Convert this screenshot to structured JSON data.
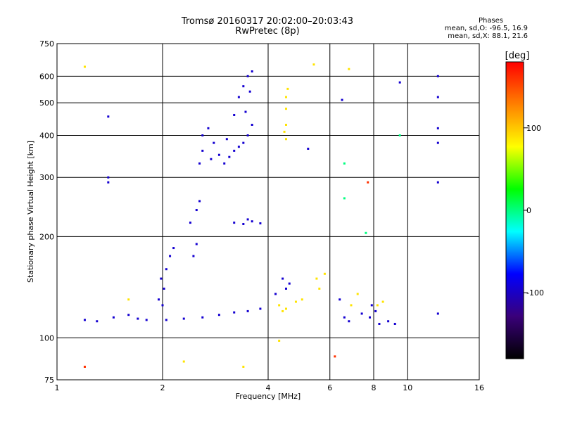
{
  "chart_data": {
    "type": "scatter",
    "title": "Tromsø 20160317 20:02:00–20:03:43",
    "subtitle": "RwPretec (8p)",
    "xlabel": "Frequency [MHz]",
    "ylabel": "Stationary phase Virtual Height [km]",
    "x_scale": "log2",
    "y_scale": "log",
    "xlim": [
      1,
      16
    ],
    "ylim": [
      75,
      750
    ],
    "x_ticks": [
      "1",
      "2",
      "4",
      "6",
      "8",
      "10",
      "16"
    ],
    "x_tick_values": [
      1,
      2,
      4,
      6,
      8,
      10,
      16
    ],
    "x_grid_values": [
      2,
      4,
      6,
      8,
      10
    ],
    "y_ticks": [
      "75",
      "100",
      "200",
      "300",
      "400",
      "500",
      "600",
      "750"
    ],
    "y_tick_values": [
      75,
      100,
      200,
      300,
      400,
      500,
      600,
      750
    ],
    "grid": true,
    "phases_box": {
      "title": "Phases",
      "line1": "mean, sd,O: -96.5, 16.9",
      "line2": "mean, sd,X:  88.1, 21.6"
    },
    "colorbar": {
      "label": "[deg]",
      "range": [
        -180,
        180
      ],
      "ticks": [
        "100",
        "0",
        "-100"
      ],
      "tick_values": [
        100,
        0,
        -100
      ],
      "colors": [
        "#000000",
        "#3a007a",
        "#0000ff",
        "#00ffff",
        "#00ff00",
        "#ffff00",
        "#ff8000",
        "#ff0000"
      ]
    },
    "series": [
      {
        "phase": -95,
        "points": [
          [
            2.55,
            330
          ],
          [
            2.6,
            360
          ],
          [
            2.7,
            420
          ],
          [
            2.8,
            380
          ],
          [
            2.9,
            350
          ],
          [
            3.0,
            330
          ],
          [
            3.1,
            345
          ],
          [
            3.2,
            360
          ],
          [
            3.3,
            370
          ],
          [
            3.4,
            380
          ],
          [
            3.5,
            400
          ],
          [
            3.6,
            430
          ],
          [
            3.2,
            460
          ],
          [
            3.3,
            520
          ],
          [
            3.4,
            560
          ],
          [
            3.5,
            600
          ],
          [
            3.6,
            620
          ],
          [
            2.6,
            400
          ],
          [
            2.75,
            340
          ],
          [
            3.05,
            390
          ],
          [
            3.45,
            470
          ],
          [
            3.55,
            540
          ],
          [
            2.05,
            113
          ],
          [
            2.3,
            114
          ],
          [
            2.6,
            115
          ],
          [
            2.9,
            117
          ],
          [
            3.2,
            119
          ],
          [
            3.5,
            120
          ],
          [
            3.8,
            122
          ],
          [
            1.2,
            113
          ],
          [
            1.3,
            112
          ],
          [
            1.45,
            115
          ],
          [
            1.6,
            117
          ],
          [
            1.7,
            114
          ],
          [
            1.8,
            113
          ],
          [
            2.0,
            125
          ],
          [
            2.02,
            140
          ],
          [
            2.05,
            160
          ],
          [
            2.1,
            175
          ],
          [
            2.15,
            185
          ],
          [
            1.95,
            130
          ],
          [
            1.98,
            150
          ],
          [
            2.4,
            220
          ],
          [
            2.5,
            240
          ],
          [
            2.55,
            255
          ],
          [
            2.45,
            175
          ],
          [
            2.5,
            190
          ],
          [
            3.2,
            220
          ],
          [
            3.4,
            218
          ],
          [
            3.6,
            222
          ],
          [
            3.8,
            219
          ],
          [
            3.5,
            225
          ],
          [
            4.4,
            150
          ],
          [
            4.5,
            140
          ],
          [
            4.2,
            135
          ],
          [
            4.6,
            145
          ],
          [
            6.4,
            130
          ],
          [
            6.6,
            115
          ],
          [
            6.8,
            112
          ],
          [
            7.4,
            118
          ],
          [
            7.8,
            115
          ],
          [
            8.3,
            110
          ],
          [
            8.8,
            112
          ],
          [
            9.2,
            110
          ],
          [
            7.9,
            125
          ],
          [
            8.1,
            120
          ],
          [
            12.2,
            600
          ],
          [
            12.2,
            520
          ],
          [
            12.2,
            420
          ],
          [
            12.2,
            380
          ],
          [
            1.4,
            455
          ],
          [
            1.4,
            300
          ],
          [
            1.4,
            290
          ],
          [
            9.5,
            575
          ],
          [
            6.5,
            510
          ],
          [
            12.2,
            290
          ],
          [
            5.2,
            365
          ],
          [
            12.2,
            118
          ]
        ]
      },
      {
        "phase": 88,
        "points": [
          [
            4.5,
            390
          ],
          [
            4.5,
            430
          ],
          [
            4.5,
            480
          ],
          [
            4.5,
            520
          ],
          [
            4.55,
            550
          ],
          [
            4.45,
            410
          ],
          [
            4.3,
            125
          ],
          [
            4.5,
            122
          ],
          [
            4.8,
            128
          ],
          [
            5.0,
            130
          ],
          [
            4.4,
            120
          ],
          [
            5.5,
            150
          ],
          [
            5.8,
            155
          ],
          [
            5.6,
            140
          ],
          [
            6.9,
            125
          ],
          [
            7.2,
            135
          ],
          [
            8.2,
            125
          ],
          [
            8.5,
            128
          ],
          [
            1.2,
            640
          ],
          [
            5.4,
            650
          ],
          [
            6.8,
            630
          ],
          [
            1.6,
            130
          ],
          [
            2.3,
            85
          ],
          [
            3.4,
            82
          ],
          [
            4.3,
            98
          ]
        ]
      },
      {
        "phase": 0,
        "points": [
          [
            6.6,
            330
          ],
          [
            6.6,
            260
          ],
          [
            7.6,
            205
          ],
          [
            9.5,
            400
          ]
        ]
      },
      {
        "phase": 160,
        "points": [
          [
            7.7,
            290
          ],
          [
            6.2,
            88
          ],
          [
            1.2,
            82
          ]
        ]
      }
    ]
  }
}
